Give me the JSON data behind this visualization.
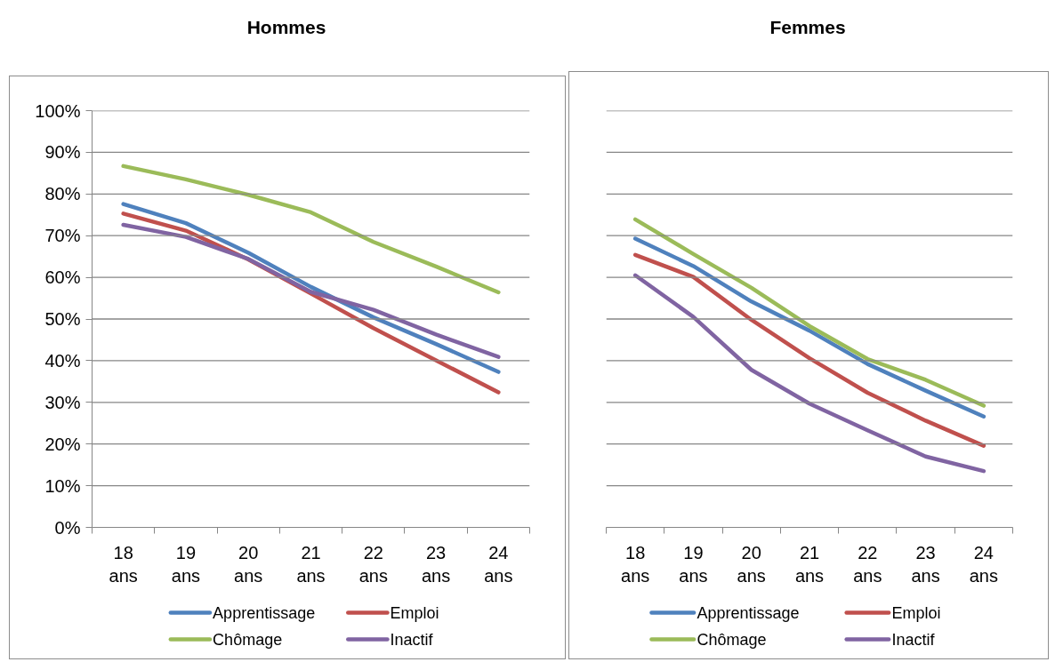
{
  "chart_data": [
    {
      "type": "line",
      "title": "Hommes",
      "categories": [
        "18 ans",
        "19 ans",
        "20 ans",
        "21 ans",
        "22 ans",
        "23 ans",
        "24 ans"
      ],
      "series": [
        {
          "name": "Apprentissage",
          "color": "#4f81bd",
          "values": [
            77.6,
            73,
            65.9,
            57.7,
            50.4,
            44,
            37.3
          ]
        },
        {
          "name": "Emploi",
          "color": "#c0504d",
          "values": [
            75.3,
            71.2,
            64.3,
            56.1,
            47.8,
            40.1,
            32.4
          ]
        },
        {
          "name": "Chômage",
          "color": "#9bbb59",
          "values": [
            86.7,
            83.5,
            79.8,
            75.6,
            68.5,
            62.6,
            56.4
          ]
        },
        {
          "name": "Inactif",
          "color": "#8064a2",
          "values": [
            72.6,
            69.7,
            64.4,
            56.5,
            52.2,
            46.3,
            40.9
          ]
        }
      ],
      "ylim": [
        0,
        100
      ],
      "yticks": [
        {
          "value": 0,
          "label": "0%"
        },
        {
          "value": 10,
          "label": "10%"
        },
        {
          "value": 20,
          "label": "20%"
        },
        {
          "value": 30,
          "label": "30%"
        },
        {
          "value": 40,
          "label": "40%"
        },
        {
          "value": 50,
          "label": "50%"
        },
        {
          "value": 60,
          "label": "60%"
        },
        {
          "value": 70,
          "label": "70%"
        },
        {
          "value": 80,
          "label": "80%"
        },
        {
          "value": 90,
          "label": "90%"
        },
        {
          "value": 100,
          "label": "100%"
        }
      ],
      "grid": "y",
      "legend": "bottom",
      "line_style": "solid"
    },
    {
      "type": "line",
      "title": "Femmes",
      "categories": [
        "18 ans",
        "19 ans",
        "20 ans",
        "21 ans",
        "22 ans",
        "23 ans",
        "24 ans"
      ],
      "series": [
        {
          "name": "Apprentissage",
          "color": "#4f81bd",
          "values": [
            69.3,
            62.7,
            54.2,
            47.2,
            39.2,
            32.8,
            26.6
          ]
        },
        {
          "name": "Emploi",
          "color": "#c0504d",
          "values": [
            65.4,
            60.1,
            49.8,
            40.6,
            32.3,
            25.6,
            19.6
          ]
        },
        {
          "name": "Chômage",
          "color": "#9bbb59",
          "values": [
            73.9,
            65.6,
            57.5,
            48.3,
            40.4,
            35.4,
            29.2
          ]
        },
        {
          "name": "Inactif",
          "color": "#8064a2",
          "values": [
            60.5,
            50.5,
            37.8,
            29.7,
            23.3,
            17,
            13.5
          ]
        }
      ],
      "ylim": [
        0,
        100
      ],
      "yticks": [
        0,
        10,
        20,
        30,
        40,
        50,
        60,
        70,
        80,
        90,
        100
      ],
      "tick_labels": "x",
      "grid": "y",
      "legend": "bottom",
      "line_style": "solid"
    }
  ]
}
